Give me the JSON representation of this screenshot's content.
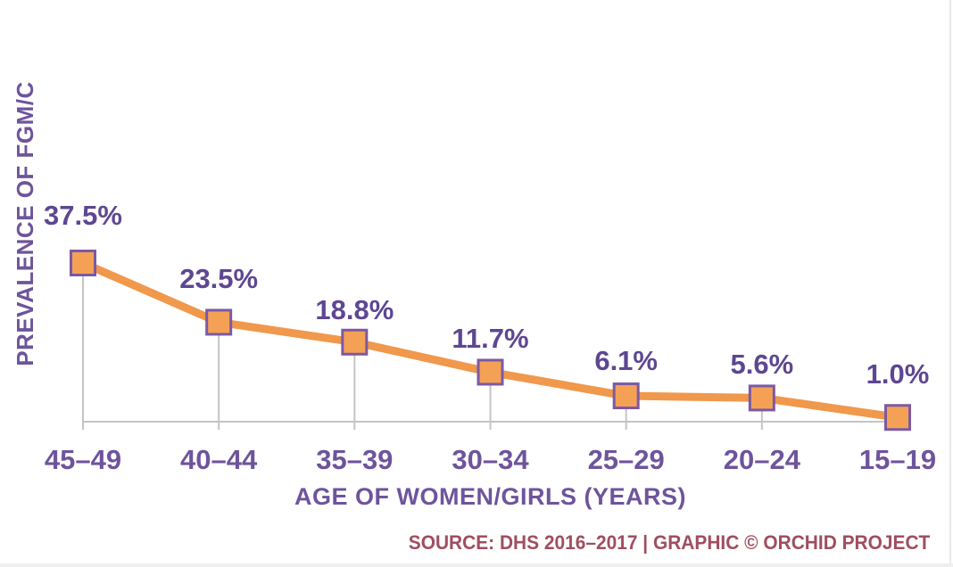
{
  "chart_data": {
    "type": "line",
    "categories": [
      "45–49",
      "40–44",
      "35–39",
      "30–34",
      "25–29",
      "20–24",
      "15–19"
    ],
    "values": [
      37.5,
      23.5,
      18.8,
      11.7,
      6.1,
      5.6,
      1.0
    ],
    "point_labels": [
      "37.5%",
      "23.5%",
      "18.8%",
      "11.7%",
      "6.1%",
      "5.6%",
      "1.0%"
    ],
    "title": "",
    "xlabel": "AGE OF WOMEN/GIRLS (YEARS)",
    "ylabel": "PREVALENCE OF FGM/C",
    "ylim": [
      0,
      40
    ],
    "grid": false,
    "legend": "none",
    "marker_shape": "square",
    "colors": {
      "line": "#F0984C",
      "marker_fill": "#F4A156",
      "marker_border": "#7C59A4",
      "data_label": "#5E4791",
      "axis_text": "#6E549C",
      "axis_line": "#C4C4C4"
    }
  },
  "footer": {
    "source": "SOURCE: DHS 2016–2017 | GRAPHIC © ORCHID PROJECT",
    "source_color": "#A04E60"
  }
}
